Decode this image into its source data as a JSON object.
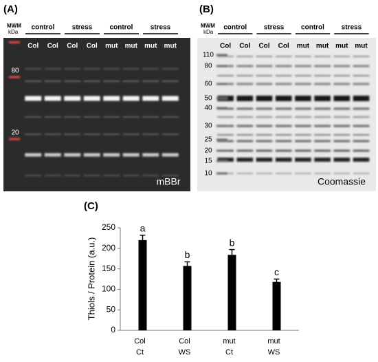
{
  "panel_a": {
    "label": "(A)",
    "mwm": "MWM",
    "kda": "kDa",
    "groups": [
      "control",
      "stress",
      "control",
      "stress"
    ],
    "lanes": [
      "Col",
      "Col",
      "Col",
      "Col",
      "mut",
      "mut",
      "mut",
      "mut"
    ],
    "markers": [
      "80",
      "20"
    ],
    "stain": "mBBr"
  },
  "panel_b": {
    "label": "(B)",
    "mwm": "MWM",
    "kda": "kDa",
    "groups": [
      "control",
      "stress",
      "control",
      "stress"
    ],
    "lanes": [
      "Col",
      "Col",
      "Col",
      "Col",
      "mut",
      "mut",
      "mut",
      "mut"
    ],
    "markers": [
      "110",
      "80",
      "60",
      "50",
      "40",
      "30",
      "25",
      "20",
      "15",
      "10"
    ],
    "stain": "Coomassie"
  },
  "chart_data": {
    "type": "bar",
    "panel_label": "(C)",
    "y_label": "Thiols / Protein (a.u.)",
    "categories": [
      [
        "Col",
        "Ct"
      ],
      [
        "Col",
        "WS"
      ],
      [
        "mut",
        "Ct"
      ],
      [
        "mut",
        "WS"
      ]
    ],
    "values": [
      220,
      157,
      184,
      118
    ],
    "errors": [
      12,
      10,
      13,
      7
    ],
    "annotations": [
      "a",
      "b",
      "b",
      "c"
    ],
    "color": "#000000",
    "ylim": [
      0,
      250
    ],
    "yticks": [
      0,
      50,
      100,
      150,
      200,
      250
    ]
  }
}
